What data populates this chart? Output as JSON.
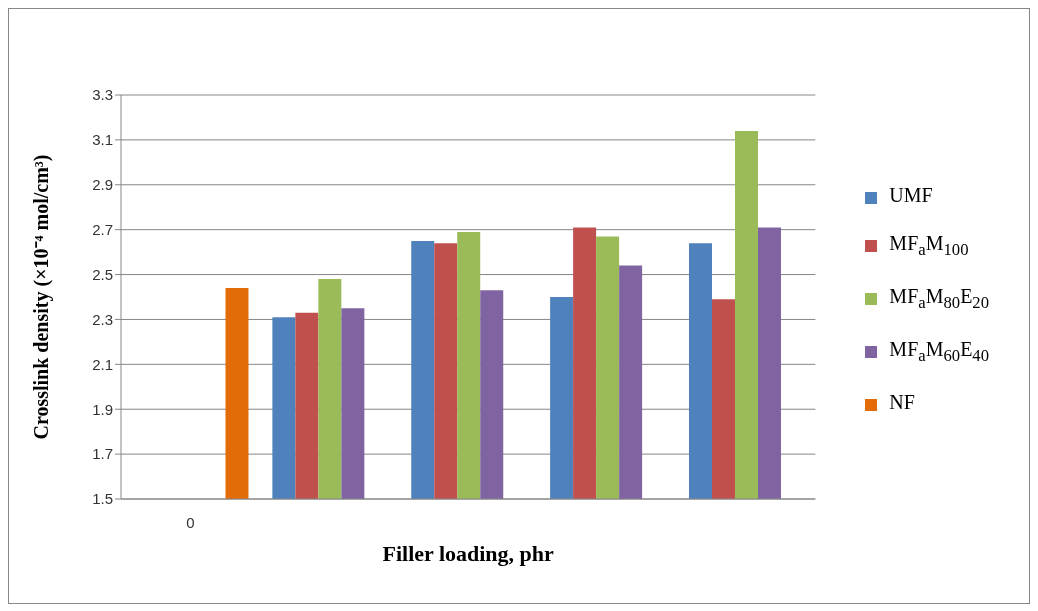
{
  "chart_data": {
    "type": "bar",
    "xlabel": "Filler loading, phr",
    "ylabel": "Crosslink density (×10⁻⁴ mol/cm³)",
    "categories": [
      "0",
      null,
      null,
      null,
      null
    ],
    "series": [
      {
        "name": "UMF",
        "color": "#4f81bd",
        "values": [
          null,
          2.31,
          2.65,
          2.4,
          2.64
        ]
      },
      {
        "name": "MF$_{a}$M$_{100}$",
        "color": "#c0504d",
        "values": [
          null,
          2.33,
          2.64,
          2.71,
          2.39
        ]
      },
      {
        "name": "MF$_{a}$M$_{80}$E$_{20}$",
        "color": "#9bbb59",
        "values": [
          null,
          2.48,
          2.69,
          2.67,
          3.14
        ]
      },
      {
        "name": "MF$_{a}$M$_{60}$E$_{40}$",
        "color": "#8064a2",
        "values": [
          null,
          2.35,
          2.43,
          2.54,
          2.71
        ]
      },
      {
        "name": "NF",
        "color": "#e36c09",
        "values": [
          2.44,
          null,
          null,
          null,
          null
        ]
      }
    ],
    "ylim": [
      1.5,
      3.3
    ],
    "yticks": [
      1.5,
      1.7,
      1.9,
      2.1,
      2.3,
      2.5,
      2.7,
      2.9,
      3.1,
      3.3
    ],
    "grid": "y",
    "legend": "right"
  }
}
